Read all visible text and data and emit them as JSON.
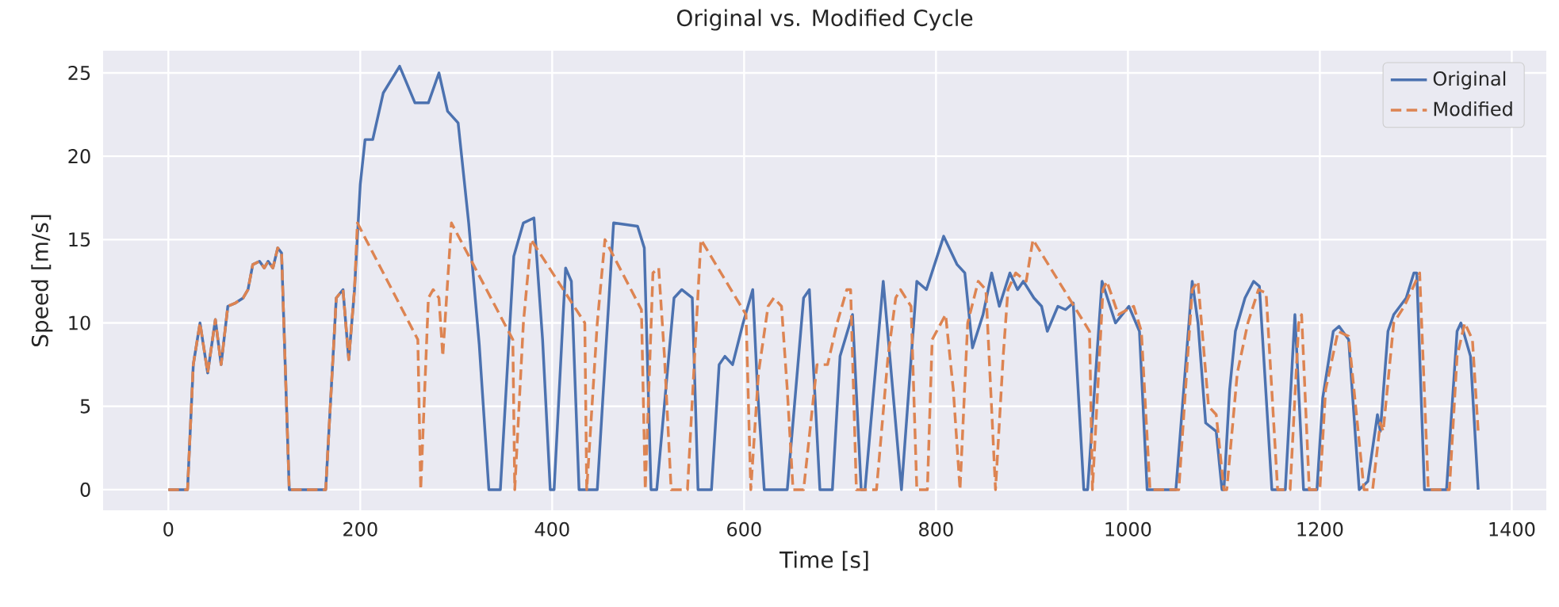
{
  "chart_data": {
    "type": "line",
    "title": "Original vs. Modified Cycle",
    "xlabel": "Time [s]",
    "ylabel": "Speed [m/s]",
    "xlim": [
      -68,
      1436
    ],
    "ylim": [
      -1.24,
      26.33
    ],
    "xticks": [
      0,
      200,
      400,
      600,
      800,
      1000,
      1200,
      1400
    ],
    "yticks": [
      0,
      5,
      10,
      15,
      20,
      25
    ],
    "grid": true,
    "legend": "top right",
    "series": [
      {
        "name": "Original",
        "color": "#4c72b0",
        "line_style": "solid",
        "x": [
          0,
          20,
          26,
          33,
          41,
          49,
          55,
          62,
          70,
          78,
          83,
          88,
          95,
          100,
          104,
          109,
          114,
          118,
          126,
          164,
          175,
          182,
          188,
          194,
          200,
          205,
          213,
          224,
          241,
          249,
          257,
          271,
          282,
          291,
          302,
          313,
          324,
          334,
          346,
          360,
          370,
          381,
          390,
          398,
          402,
          414,
          420,
          428,
          447,
          464,
          489,
          496,
          503,
          509,
          527,
          535,
          546,
          552,
          566,
          574,
          580,
          588,
          599,
          609,
          614,
          621,
          645,
          662,
          668,
          679,
          692,
          700,
          713,
          722,
          726,
          745,
          764,
          780,
          790,
          808,
          822,
          830,
          838,
          849,
          858,
          866,
          877,
          885,
          891,
          902,
          910,
          916,
          927,
          935,
          943,
          954,
          958,
          973,
          987,
          1001,
          1012,
          1020,
          1050,
          1067,
          1073,
          1081,
          1092,
          1098,
          1100,
          1106,
          1112,
          1122,
          1131,
          1137,
          1150,
          1164,
          1174,
          1183,
          1197,
          1203,
          1214,
          1220,
          1230,
          1241,
          1250,
          1260,
          1263,
          1271,
          1277,
          1290,
          1298,
          1301,
          1309,
          1332,
          1343,
          1347,
          1357,
          1365
        ],
        "values": [
          0,
          0,
          7.5,
          10,
          7,
          10.2,
          7.5,
          11,
          11.2,
          11.5,
          12,
          13.5,
          13.7,
          13.3,
          13.7,
          13.3,
          14.5,
          14.2,
          0,
          0,
          11.5,
          12,
          7.8,
          12,
          18.3,
          21,
          21,
          23.8,
          25.4,
          24.3,
          23.2,
          23.2,
          25,
          22.7,
          22,
          16,
          8.7,
          0,
          0,
          14,
          16,
          16.3,
          9,
          0,
          0,
          13.3,
          12.5,
          0,
          0,
          16,
          15.8,
          14.5,
          0,
          0,
          11.5,
          12,
          11.5,
          0,
          0,
          7.5,
          8,
          7.5,
          10,
          12,
          6,
          0,
          0,
          11.5,
          12,
          0,
          0,
          8,
          10.5,
          0,
          0,
          12.5,
          0,
          12.5,
          12,
          15.2,
          13.5,
          13,
          8.5,
          10.5,
          13,
          11,
          13,
          12,
          12.5,
          11.5,
          11,
          9.5,
          11,
          10.8,
          11.2,
          0,
          0,
          12.5,
          10,
          11,
          9.5,
          0,
          0,
          12.5,
          10,
          4,
          3.5,
          0,
          0,
          6,
          9.5,
          11.5,
          12.5,
          12.2,
          0,
          0,
          10.5,
          0,
          0,
          5.5,
          9.5,
          9.8,
          9,
          0,
          0.5,
          4.5,
          3.5,
          9.5,
          10.5,
          11.5,
          13,
          13,
          0,
          0,
          9.5,
          10,
          8,
          0
        ]
      },
      {
        "name": "Modified",
        "color": "#dd8452",
        "line_style": "dashed",
        "x": [
          0,
          20,
          26,
          33,
          41,
          49,
          55,
          62,
          70,
          78,
          83,
          88,
          95,
          100,
          104,
          109,
          114,
          118,
          126,
          164,
          175,
          182,
          188,
          194,
          197,
          260,
          263,
          271,
          276,
          282,
          286,
          295,
          359,
          361,
          370,
          378,
          434,
          436,
          447,
          455,
          493,
          497,
          505,
          511,
          517,
          524,
          541,
          555,
          602,
          607,
          615,
          625,
          631,
          639,
          645,
          651,
          662,
          676,
          687,
          697,
          707,
          711,
          717,
          738,
          750,
          758,
          763,
          774,
          780,
          791,
          796,
          810,
          818,
          825,
          833,
          844,
          852,
          862,
          870,
          875,
          883,
          894,
          901,
          960,
          963,
          974,
          978,
          990,
          1006,
          1014,
          1023,
          1053,
          1067,
          1073,
          1084,
          1092,
          1100,
          1103,
          1114,
          1125,
          1136,
          1144,
          1156,
          1169,
          1178,
          1181,
          1189,
          1200,
          1206,
          1219,
          1230,
          1246,
          1255,
          1263,
          1266,
          1277,
          1288,
          1304,
          1313,
          1335,
          1343,
          1351,
          1359,
          1365
        ],
        "values": [
          0,
          0,
          7.5,
          10,
          7,
          10.2,
          7.5,
          11,
          11.2,
          11.5,
          12,
          13.5,
          13.7,
          13.3,
          13.7,
          13.3,
          14.5,
          14.2,
          0,
          0,
          11.5,
          12,
          7.8,
          12,
          16,
          9,
          0,
          11.5,
          12,
          11.5,
          8,
          16,
          9,
          0,
          10,
          15,
          10,
          0,
          10,
          15,
          10.8,
          0,
          13,
          13.3,
          8,
          0,
          0,
          15,
          10.5,
          0,
          7,
          11,
          11.5,
          11,
          6,
          0,
          0,
          7.5,
          7.5,
          10,
          12,
          12,
          0,
          0,
          8,
          11.5,
          12,
          11,
          0,
          0,
          9,
          10.5,
          6,
          0,
          10,
          12.5,
          12,
          0,
          8,
          12,
          13,
          12.5,
          15,
          9.5,
          0,
          12,
          12.5,
          10.5,
          11,
          9.5,
          0,
          0,
          12,
          12.5,
          5,
          4.5,
          0,
          0,
          7,
          10,
          12,
          11.8,
          0,
          0,
          10,
          10.5,
          0,
          0,
          6,
          9.5,
          9.2,
          0,
          0,
          4,
          3.5,
          10,
          11,
          13,
          0,
          0,
          8,
          10,
          9,
          3.5
        ]
      }
    ]
  }
}
